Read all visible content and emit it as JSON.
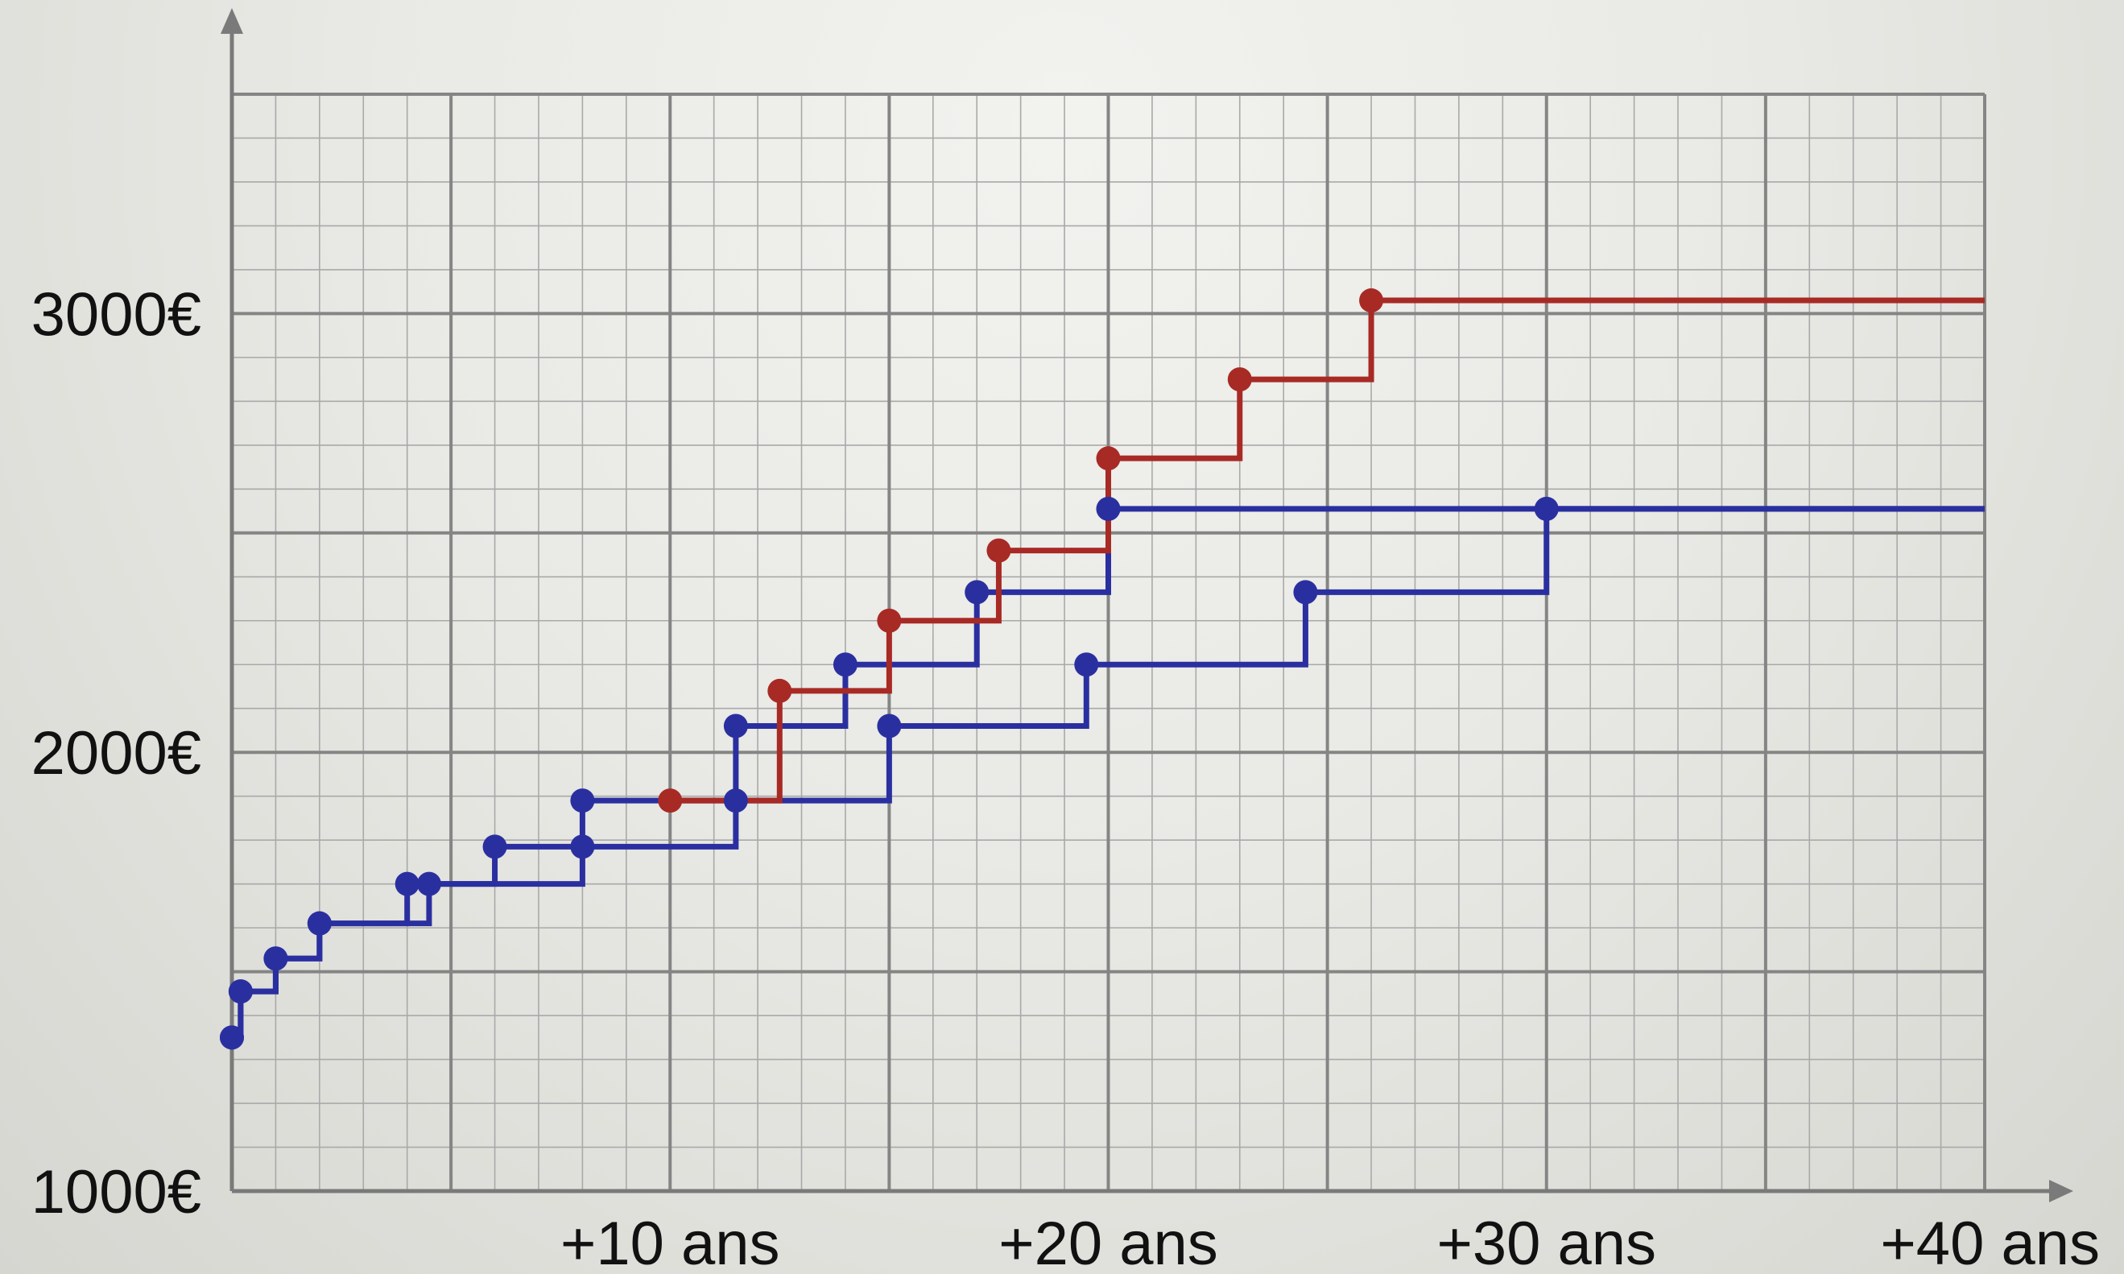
{
  "chart_data": {
    "type": "line",
    "step": true,
    "title": "",
    "xlabel": "",
    "ylabel": "",
    "xlim": [
      0,
      40
    ],
    "ylim": [
      1000,
      3000
    ],
    "x_ticks": [
      {
        "value": 10,
        "label": "+10 ans"
      },
      {
        "value": 20,
        "label": "+20 ans"
      },
      {
        "value": 30,
        "label": "+30 ans"
      },
      {
        "value": 40,
        "label": "+40 ans"
      }
    ],
    "y_ticks": [
      {
        "value": 1000,
        "label": "1000€"
      },
      {
        "value": 2000,
        "label": "2000€"
      },
      {
        "value": 3000,
        "label": "3000€"
      }
    ],
    "grid": true,
    "legend": "none",
    "series": [
      {
        "color": "#2a2fa0",
        "points": [
          [
            0,
            1350
          ],
          [
            0.2,
            1455
          ],
          [
            1,
            1530
          ],
          [
            2,
            1610
          ],
          [
            4,
            1700
          ],
          [
            6,
            1785
          ],
          [
            8,
            1890
          ],
          [
            11.5,
            2060
          ],
          [
            14,
            2200
          ],
          [
            17,
            2365
          ],
          [
            20,
            2555
          ],
          [
            40,
            2555
          ]
        ]
      },
      {
        "color": "#2a2fa0",
        "points": [
          [
            0,
            1350
          ],
          [
            0.2,
            1455
          ],
          [
            1,
            1530
          ],
          [
            2,
            1610
          ],
          [
            4.5,
            1700
          ],
          [
            8,
            1785
          ],
          [
            11.5,
            1890
          ],
          [
            15,
            2060
          ],
          [
            19.5,
            2200
          ],
          [
            24.5,
            2365
          ],
          [
            30,
            2555
          ],
          [
            40,
            2555
          ]
        ]
      },
      {
        "color": "#a82a25",
        "points": [
          [
            10,
            1890
          ],
          [
            12.5,
            2140
          ],
          [
            15,
            2300
          ],
          [
            17.5,
            2460
          ],
          [
            20,
            2670
          ],
          [
            23,
            2850
          ],
          [
            26,
            3030
          ],
          [
            40,
            3030
          ]
        ]
      }
    ]
  }
}
